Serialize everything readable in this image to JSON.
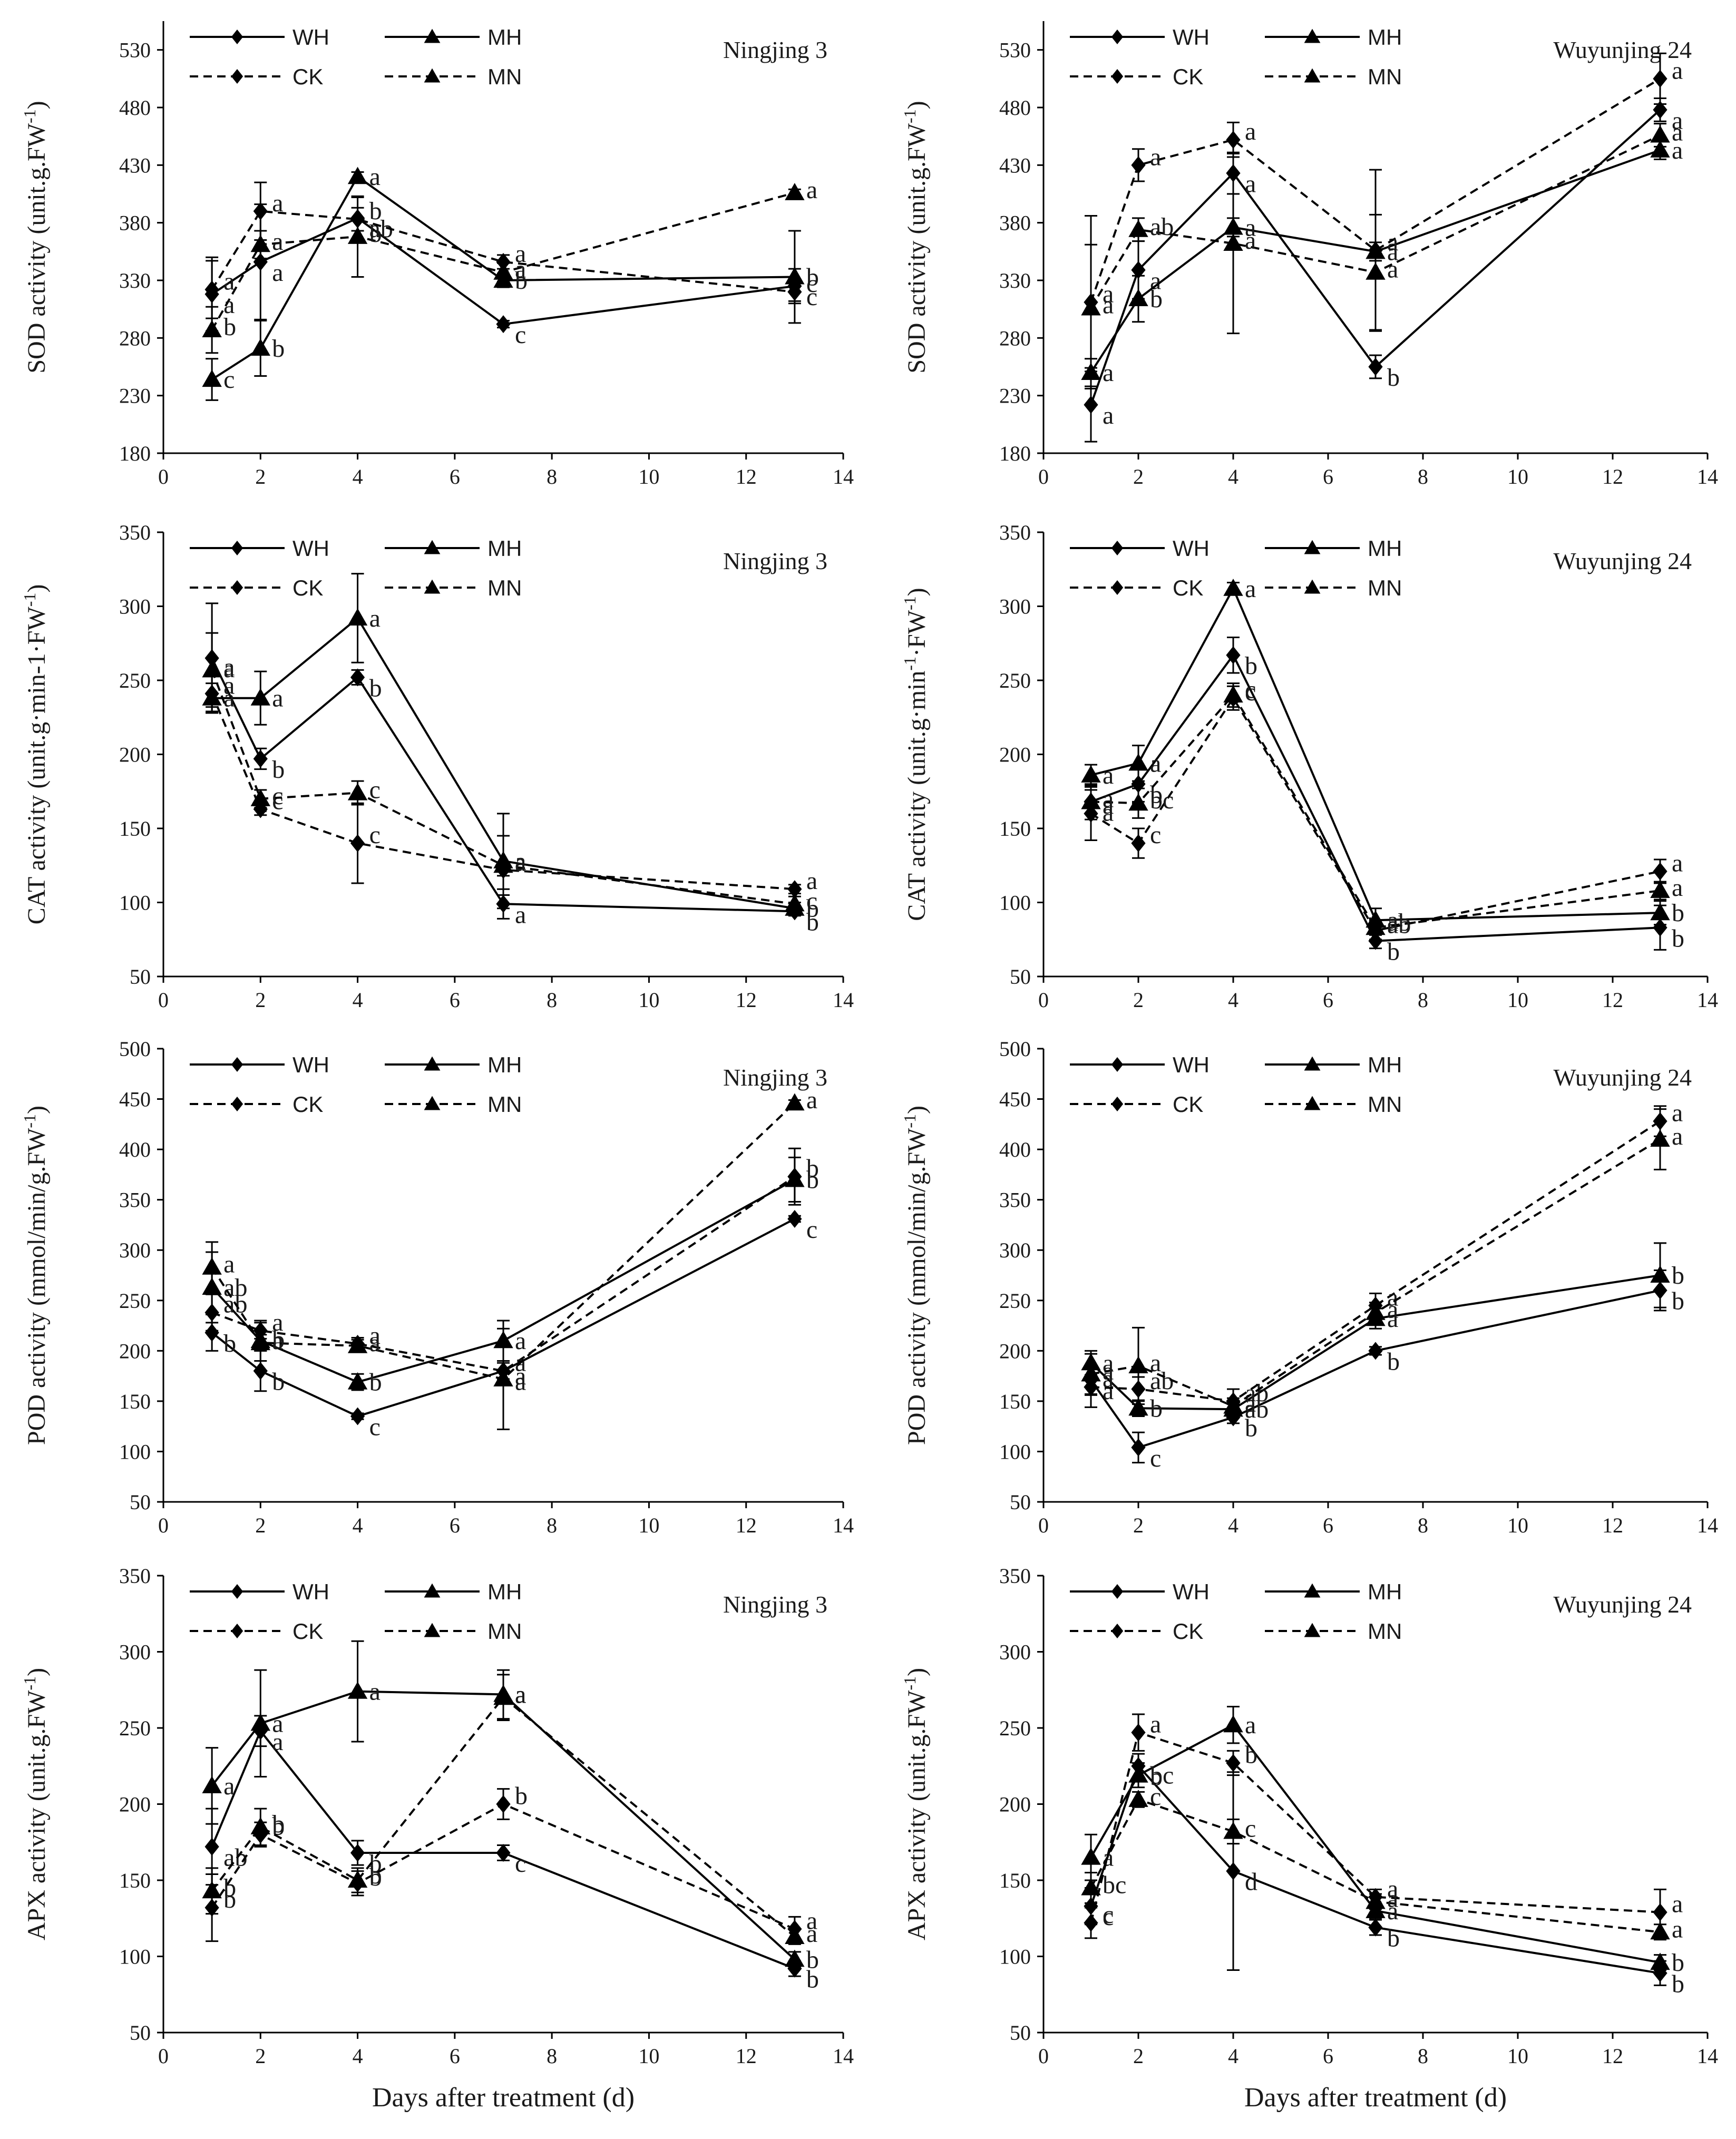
{
  "figure": {
    "xlabel": "Days after treatment (d)",
    "legend": [
      {
        "name": "WH",
        "marker": "diamond",
        "dash": "solid"
      },
      {
        "name": "MH",
        "marker": "triangle",
        "dash": "solid"
      },
      {
        "name": "CK",
        "marker": "diamond",
        "dash": "dashed"
      },
      {
        "name": "MN",
        "marker": "triangle",
        "dash": "dashed"
      }
    ],
    "colors": {
      "ink": "#000000",
      "background": "#ffffff"
    }
  },
  "chart_data": [
    {
      "type": "line",
      "title": "Ningjing 3",
      "xlabel": "",
      "ylabel": "SOD activity (unit.g.FW-1)",
      "ylabel_main": "SOD activity (unit.g.FW",
      "ylabel_sup": "-1",
      "ylabel_tail": ")",
      "xlim": [
        0,
        14
      ],
      "xticks": [
        0,
        2,
        4,
        6,
        8,
        10,
        12,
        14
      ],
      "ylim": [
        180,
        555
      ],
      "yticks": [
        180,
        230,
        280,
        330,
        380,
        430,
        480,
        530
      ],
      "x": [
        1,
        2,
        4,
        7,
        13
      ],
      "series": [
        {
          "name": "WH",
          "values": [
            318,
            346,
            384,
            292,
            325
          ],
          "errors": [
            32,
            50,
            18,
            3,
            15
          ],
          "letters": [
            "a",
            "a",
            "ab",
            "c",
            "c"
          ]
        },
        {
          "name": "MH",
          "values": [
            244,
            271,
            420,
            330,
            333
          ],
          "errors": [
            18,
            24,
            4,
            6,
            40
          ],
          "letters": [
            "c",
            "b",
            "a",
            "b",
            "b"
          ]
        },
        {
          "name": "CK",
          "values": [
            322,
            390,
            383,
            346,
            320
          ],
          "errors": [
            25,
            25,
            10,
            6,
            8
          ],
          "letters": [
            "a",
            "a",
            "b",
            "a",
            "c"
          ]
        },
        {
          "name": "MN",
          "values": [
            287,
            361,
            368,
            337,
            406
          ],
          "errors": [
            20,
            12,
            35,
            8,
            3
          ],
          "letters": [
            "b",
            "a",
            "b",
            "a",
            "a"
          ]
        }
      ]
    },
    {
      "type": "line",
      "title": "Wuyunjing 24",
      "xlabel": "",
      "ylabel": "SOD activity (unit.g.FW-1)",
      "ylabel_main": "SOD activity (unit.g.FW",
      "ylabel_sup": "-1",
      "ylabel_tail": ")",
      "xlim": [
        0,
        14
      ],
      "xticks": [
        0,
        2,
        4,
        6,
        8,
        10,
        12,
        14
      ],
      "ylim": [
        180,
        555
      ],
      "yticks": [
        180,
        230,
        280,
        330,
        380,
        430,
        480,
        530
      ],
      "x": [
        1,
        2,
        4,
        7,
        13
      ],
      "series": [
        {
          "name": "WH",
          "values": [
            222,
            339,
            423,
            255,
            478
          ],
          "errors": [
            32,
            25,
            18,
            10,
            10
          ],
          "letters": [
            "a",
            "a",
            "a",
            "b",
            "a"
          ]
        },
        {
          "name": "MH",
          "values": [
            250,
            314,
            376,
            355,
            443
          ],
          "errors": [
            12,
            20,
            8,
            8,
            8
          ],
          "letters": [
            "a",
            "b",
            "a",
            "a",
            "a"
          ]
        },
        {
          "name": "CK",
          "values": [
            311,
            430,
            452,
            356,
            505
          ],
          "errors": [
            75,
            14,
            15,
            70,
            22
          ],
          "letters": [
            "a",
            "a",
            "a",
            "a",
            "a"
          ]
        },
        {
          "name": "MN",
          "values": [
            306,
            374,
            362,
            337,
            456
          ],
          "errors": [
            55,
            10,
            78,
            50,
            10
          ],
          "letters": [
            "a",
            "ab",
            "a",
            "a",
            "a"
          ]
        }
      ]
    },
    {
      "type": "line",
      "title": "Ningjing 3",
      "xlabel": "",
      "ylabel": "CAT activity (unit.g·min-1·FW-1)",
      "ylabel_main": "CAT activity (unit.g·min-1·FW",
      "ylabel_sup": "-1",
      "ylabel_tail": ")",
      "xlim": [
        0,
        14
      ],
      "xticks": [
        0,
        2,
        4,
        6,
        8,
        10,
        12,
        14
      ],
      "ylim": [
        50,
        350
      ],
      "yticks": [
        50,
        100,
        150,
        200,
        250,
        300,
        350
      ],
      "x": [
        1,
        2,
        4,
        7,
        13
      ],
      "series": [
        {
          "name": "WH",
          "values": [
            265,
            197,
            252,
            99,
            94
          ],
          "errors": [
            37,
            7,
            5,
            10,
            3
          ],
          "letters": [
            "a",
            "b",
            "b",
            "a",
            "b"
          ]
        },
        {
          "name": "MH",
          "values": [
            238,
            238,
            292,
            128,
            96
          ],
          "errors": [
            10,
            18,
            30,
            32,
            4
          ],
          "letters": [
            "a",
            "a",
            "a",
            "a",
            "b"
          ]
        },
        {
          "name": "CK",
          "values": [
            241,
            163,
            140,
            122,
            109
          ],
          "errors": [
            12,
            4,
            27,
            4,
            3
          ],
          "letters": [
            "a",
            "c",
            "c",
            "a",
            "a"
          ]
        },
        {
          "name": "MN",
          "values": [
            257,
            170,
            174,
            125,
            99
          ],
          "errors": [
            25,
            6,
            8,
            20,
            5
          ],
          "letters": [
            "a",
            "c",
            "c",
            "a",
            "c"
          ]
        }
      ]
    },
    {
      "type": "line",
      "title": "Wuyunjing 24",
      "xlabel": "",
      "ylabel": "CAT activity (unit.g·min-1·FW-1)",
      "ylabel_main": "CAT activity (unit.g·min",
      "ylabel_sup": "-1",
      "ylabel_tail": "·FW",
      "ylabel_sup2": "-1",
      "ylabel_tail2": ")",
      "xlim": [
        0,
        14
      ],
      "xticks": [
        0,
        2,
        4,
        6,
        8,
        10,
        12,
        14
      ],
      "ylim": [
        50,
        350
      ],
      "yticks": [
        50,
        100,
        150,
        200,
        250,
        300,
        350
      ],
      "x": [
        1,
        2,
        4,
        7,
        13
      ],
      "series": [
        {
          "name": "WH",
          "values": [
            168,
            180,
            267,
            74,
            83
          ],
          "errors": [
            12,
            12,
            12,
            5,
            15
          ],
          "letters": [
            "a",
            "b",
            "b",
            "b",
            "b"
          ]
        },
        {
          "name": "MH",
          "values": [
            186,
            194,
            312,
            88,
            93
          ],
          "errors": [
            7,
            12,
            4,
            8,
            8
          ],
          "letters": [
            "a",
            "a",
            "a",
            "a",
            "b"
          ]
        },
        {
          "name": "CK",
          "values": [
            160,
            140,
            238,
            81,
            121
          ],
          "errors": [
            18,
            10,
            8,
            6,
            8
          ],
          "letters": [
            "a",
            "c",
            "c",
            "ab",
            "a"
          ]
        },
        {
          "name": "MN",
          "values": [
            168,
            167,
            240,
            83,
            108
          ],
          "errors": [
            8,
            10,
            8,
            5,
            6
          ],
          "letters": [
            "a",
            "bc",
            "c",
            "ab",
            "a"
          ]
        }
      ]
    },
    {
      "type": "line",
      "title": "Ningjing 3",
      "xlabel": "",
      "ylabel": "POD activity (mmol/min/g.FW-1)",
      "ylabel_main": "POD activity (mmol/min/g.FW",
      "ylabel_sup": "-1",
      "ylabel_tail": ")",
      "xlim": [
        0,
        14
      ],
      "xticks": [
        0,
        2,
        4,
        6,
        8,
        10,
        12,
        14
      ],
      "ylim": [
        50,
        500
      ],
      "yticks": [
        50,
        100,
        150,
        200,
        250,
        300,
        350,
        400,
        450,
        500
      ],
      "x": [
        1,
        2,
        4,
        7,
        13
      ],
      "series": [
        {
          "name": "WH",
          "values": [
            218,
            180,
            135,
            180,
            331
          ],
          "errors": [
            18,
            20,
            3,
            10,
            3
          ],
          "letters": [
            "b",
            "b",
            "c",
            "a",
            "c"
          ]
        },
        {
          "name": "MH",
          "values": [
            263,
            210,
            169,
            210,
            370
          ],
          "errors": [
            35,
            20,
            8,
            20,
            22
          ],
          "letters": [
            "ab",
            "a",
            "b",
            "a",
            "b"
          ]
        },
        {
          "name": "CK",
          "values": [
            238,
            220,
            207,
            180,
            373
          ],
          "errors": [
            18,
            8,
            6,
            8,
            28
          ],
          "letters": [
            "ab",
            "a",
            "a",
            "a",
            "b"
          ]
        },
        {
          "name": "MN",
          "values": [
            283,
            208,
            205,
            172,
            446
          ],
          "errors": [
            25,
            8,
            6,
            50,
            3
          ],
          "letters": [
            "a",
            "b",
            "a",
            "a",
            "a"
          ]
        }
      ]
    },
    {
      "type": "line",
      "title": "Wuyunjing 24",
      "xlabel": "",
      "ylabel": "POD activity (mmol/min/g.FW-1)",
      "ylabel_main": "POD activity (mmol/min/g.FW",
      "ylabel_sup": "-1",
      "ylabel_tail": ")",
      "xlim": [
        0,
        14
      ],
      "xticks": [
        0,
        2,
        4,
        6,
        8,
        10,
        12,
        14
      ],
      "ylim": [
        50,
        500
      ],
      "yticks": [
        50,
        100,
        150,
        200,
        250,
        300,
        350,
        400,
        450,
        500
      ],
      "x": [
        1,
        2,
        4,
        7,
        13
      ],
      "series": [
        {
          "name": "WH",
          "values": [
            171,
            104,
            134,
            200,
            260
          ],
          "errors": [
            15,
            15,
            6,
            4,
            20
          ],
          "letters": [
            "a",
            "c",
            "b",
            "b",
            "b"
          ]
        },
        {
          "name": "MH",
          "values": [
            188,
            143,
            142,
            232,
            275
          ],
          "errors": [
            12,
            8,
            5,
            10,
            32
          ],
          "letters": [
            "a",
            "b",
            "ab",
            "a",
            "b"
          ]
        },
        {
          "name": "CK",
          "values": [
            164,
            162,
            150,
            245,
            428
          ],
          "errors": [
            20,
            12,
            12,
            12,
            15
          ],
          "letters": [
            "a",
            "ab",
            "ab",
            "a",
            "a"
          ]
        },
        {
          "name": "MN",
          "values": [
            177,
            185,
            145,
            238,
            410
          ],
          "errors": [
            20,
            38,
            8,
            10,
            30
          ],
          "letters": [
            "a",
            "a",
            "a",
            "a",
            "a"
          ]
        }
      ]
    },
    {
      "type": "line",
      "title": "Ningjing 3",
      "xlabel": "Days after treatment (d)",
      "ylabel": "APX activity (unit.g.FW-1)",
      "ylabel_main": "APX activity (unit.g.FW",
      "ylabel_sup": "-1",
      "ylabel_tail": ")",
      "xlim": [
        0,
        14
      ],
      "xticks": [
        0,
        2,
        4,
        6,
        8,
        10,
        12,
        14
      ],
      "ylim": [
        50,
        350
      ],
      "yticks": [
        50,
        100,
        150,
        200,
        250,
        300,
        350
      ],
      "x": [
        1,
        2,
        4,
        7,
        13
      ],
      "series": [
        {
          "name": "WH",
          "values": [
            172,
            248,
            168,
            168,
            92
          ],
          "errors": [
            25,
            10,
            8,
            5,
            5
          ],
          "letters": [
            "ab",
            "a",
            "b",
            "c",
            "b"
          ]
        },
        {
          "name": "MH",
          "values": [
            212,
            253,
            274,
            272,
            98
          ],
          "errors": [
            25,
            35,
            33,
            16,
            5
          ],
          "letters": [
            "a",
            "a",
            "a",
            "a",
            "b"
          ]
        },
        {
          "name": "CK",
          "values": [
            132,
            180,
            148,
            200,
            118
          ],
          "errors": [
            22,
            8,
            8,
            10,
            8
          ],
          "letters": [
            "b",
            "b",
            "b",
            "b",
            "a"
          ]
        },
        {
          "name": "MN",
          "values": [
            143,
            185,
            150,
            270,
            113
          ],
          "errors": [
            15,
            12,
            8,
            15,
            5
          ],
          "letters": [
            "b",
            "b",
            "b",
            "a",
            "a"
          ]
        }
      ]
    },
    {
      "type": "line",
      "title": "Wuyunjing 24",
      "xlabel": "Days after treatment (d)",
      "ylabel": "APX activity (unit.g.FW-1)",
      "ylabel_main": "APX activity (unit.g.FW",
      "ylabel_sup": "-1",
      "ylabel_tail": ")",
      "xlim": [
        0,
        14
      ],
      "xticks": [
        0,
        2,
        4,
        6,
        8,
        10,
        12,
        14
      ],
      "ylim": [
        50,
        350
      ],
      "yticks": [
        50,
        100,
        150,
        200,
        250,
        300,
        350
      ],
      "x": [
        1,
        2,
        4,
        7,
        13
      ],
      "series": [
        {
          "name": "WH",
          "values": [
            133,
            225,
            156,
            119,
            89
          ],
          "errors": [
            12,
            8,
            65,
            5,
            8
          ],
          "letters": [
            "c",
            "b",
            "d",
            "b",
            "b"
          ]
        },
        {
          "name": "MH",
          "values": [
            165,
            219,
            252,
            130,
            96
          ],
          "errors": [
            15,
            8,
            12,
            5,
            5
          ],
          "letters": [
            "a",
            "bc",
            "a",
            "a",
            "b"
          ]
        },
        {
          "name": "CK",
          "values": [
            122,
            247,
            227,
            139,
            129
          ],
          "errors": [
            10,
            12,
            8,
            5,
            15
          ],
          "letters": [
            "c",
            "a",
            "b",
            "a",
            "a"
          ]
        },
        {
          "name": "MN",
          "values": [
            145,
            203,
            182,
            136,
            116
          ],
          "errors": [
            10,
            5,
            8,
            5,
            5
          ],
          "letters": [
            "bc",
            "c",
            "c",
            "a",
            "a"
          ]
        }
      ]
    }
  ]
}
